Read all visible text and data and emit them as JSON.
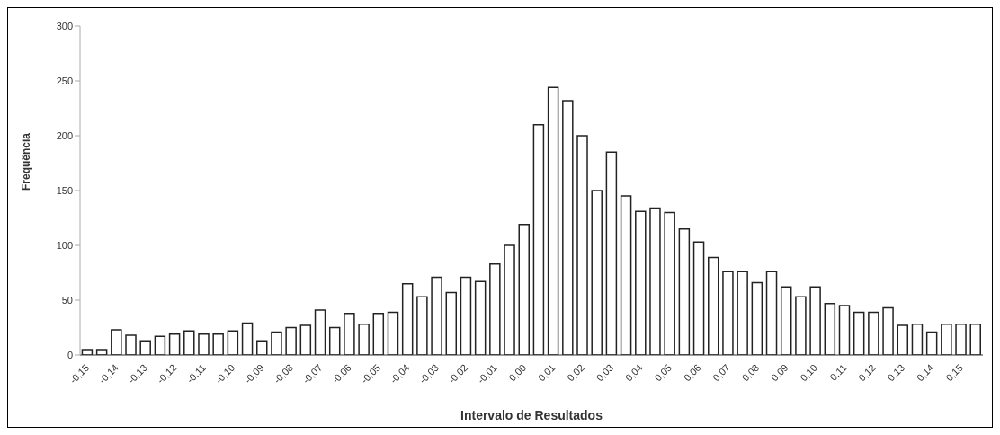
{
  "chart_data": {
    "type": "bar",
    "xlabel": "Intervalo de Resultados",
    "ylabel": "Frequência",
    "categories": [
      "-0,15",
      null,
      "-0,14",
      null,
      "-0,13",
      null,
      "-0,12",
      null,
      "-0,11",
      null,
      "-0,10",
      null,
      "-0,09",
      null,
      "-0,08",
      null,
      "-0,07",
      null,
      "-0,06",
      null,
      "-0,05",
      null,
      "-0,04",
      null,
      "-0,03",
      null,
      "-0,02",
      null,
      "-0,01",
      null,
      "0,00",
      null,
      "0,01",
      null,
      "0,02",
      null,
      "0,03",
      null,
      "0,04",
      null,
      "0,05",
      null,
      "0,06",
      null,
      "0,07",
      null,
      "0,08",
      null,
      "0,09",
      null,
      "0,10",
      null,
      "0,11",
      null,
      "0,12",
      null,
      "0,13",
      null,
      "0,14",
      null,
      "0,15",
      null
    ],
    "values": [
      5,
      5,
      23,
      18,
      13,
      17,
      19,
      22,
      19,
      19,
      22,
      29,
      13,
      21,
      25,
      27,
      41,
      25,
      38,
      28,
      38,
      39,
      65,
      53,
      71,
      57,
      71,
      67,
      83,
      100,
      119,
      210,
      244,
      232,
      200,
      150,
      185,
      145,
      131,
      134,
      130,
      115,
      103,
      89,
      76,
      76,
      66,
      76,
      62,
      53,
      62,
      47,
      45,
      39,
      39,
      43,
      27,
      28,
      21,
      28,
      28,
      28
    ],
    "color": "#ffffff",
    "ylim": [
      0,
      300
    ],
    "yticks": [
      0,
      50,
      100,
      150,
      200,
      250,
      300
    ],
    "grid": false,
    "legend": false
  }
}
